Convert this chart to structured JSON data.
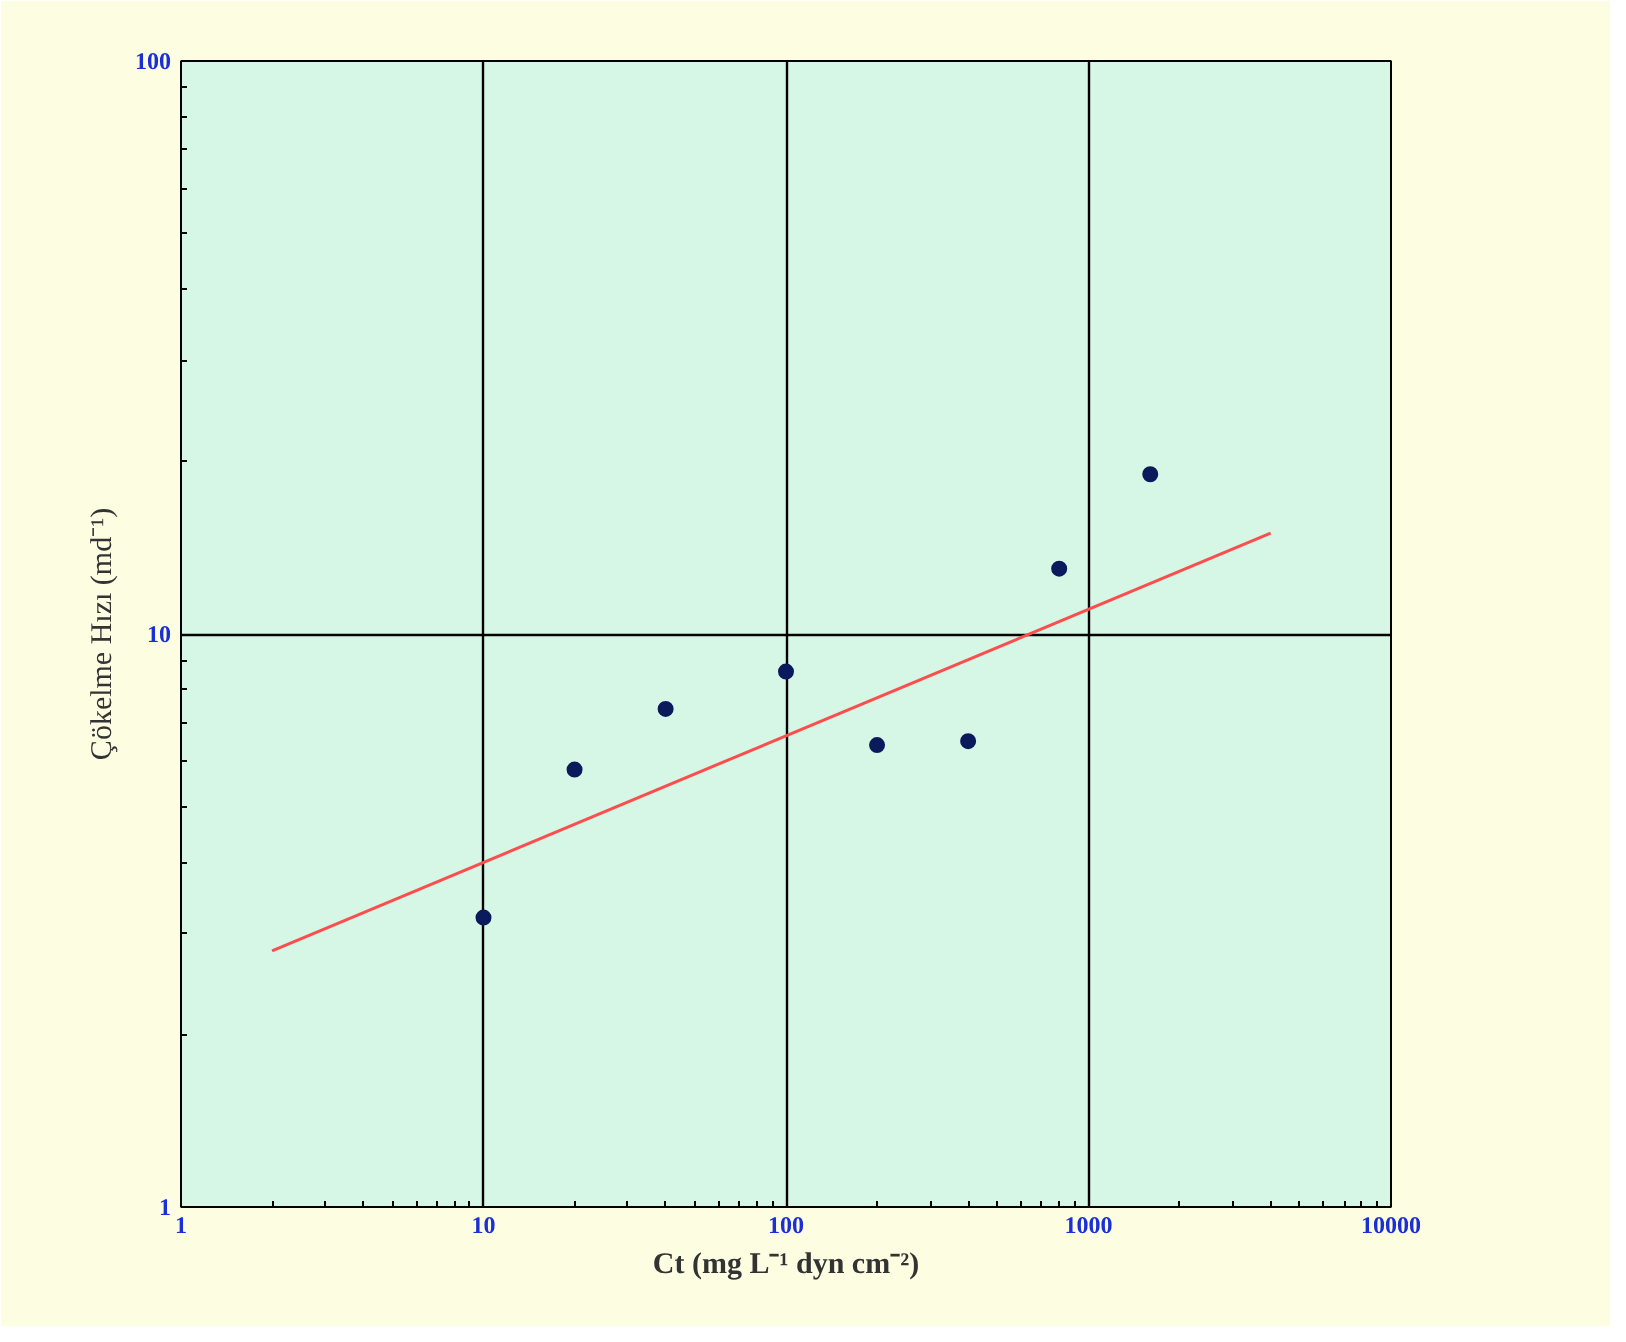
{
  "chart_data": {
    "type": "scatter",
    "xlabel": "Ct (mg L⁻¹ dyn cm⁻²)",
    "ylabel": "Çökelme Hızı (md⁻¹)",
    "log": "xy",
    "grid": true,
    "xlim": [
      1,
      10000
    ],
    "xticks": [
      1,
      10,
      100,
      1000,
      10000
    ],
    "ylim": [
      1,
      100
    ],
    "yticks": [
      1,
      10,
      100
    ],
    "series": [
      {
        "color": "#0b1a5c",
        "marker": "circle",
        "x": [
          10,
          20,
          40,
          100,
          200,
          400,
          800,
          1600
        ],
        "values": [
          3.2,
          5.8,
          7.4,
          8.6,
          6.4,
          6.5,
          13,
          19
        ]
      },
      {
        "type": "line",
        "color": "#ff4d4d",
        "marker": "none",
        "line_style": "solid",
        "x": [
          2,
          4000
        ],
        "values": [
          2.8,
          15
        ]
      }
    ]
  }
}
